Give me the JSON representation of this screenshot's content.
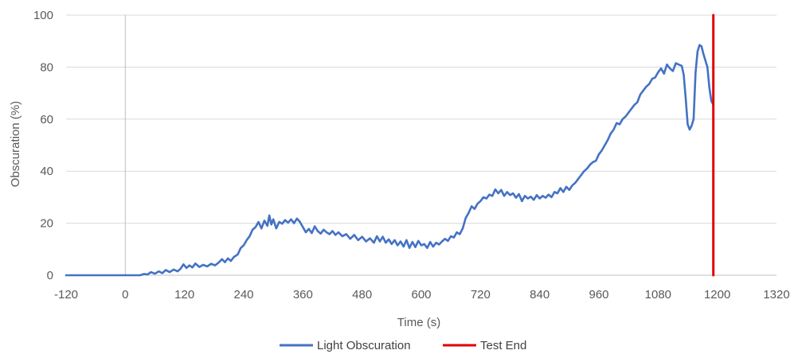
{
  "chart_data": {
    "type": "line",
    "title": "",
    "xlabel": "Time (s)",
    "ylabel": "Obscuration (%)",
    "xlim": [
      -120,
      1320
    ],
    "ylim": [
      0,
      100
    ],
    "xticks": [
      "-120",
      "0",
      "120",
      "240",
      "360",
      "480",
      "600",
      "720",
      "840",
      "960",
      "1080",
      "1200",
      "1320"
    ],
    "yticks": [
      "0",
      "20",
      "40",
      "60",
      "80",
      "100"
    ],
    "grid": "horizontal",
    "legend_position": "bottom",
    "series": [
      {
        "name": "Light Obscuration",
        "color": "#4472C4",
        "points": [
          [
            -120,
            0
          ],
          [
            0,
            0
          ],
          [
            30,
            0
          ],
          [
            38,
            0.5
          ],
          [
            45,
            0.3
          ],
          [
            52,
            1.2
          ],
          [
            60,
            0.6
          ],
          [
            68,
            1.5
          ],
          [
            75,
            0.8
          ],
          [
            82,
            2.0
          ],
          [
            90,
            1.2
          ],
          [
            98,
            2.2
          ],
          [
            106,
            1.5
          ],
          [
            112,
            2.5
          ],
          [
            118,
            4.2
          ],
          [
            124,
            2.8
          ],
          [
            130,
            3.8
          ],
          [
            136,
            3.0
          ],
          [
            142,
            4.5
          ],
          [
            150,
            3.2
          ],
          [
            158,
            4.0
          ],
          [
            166,
            3.4
          ],
          [
            174,
            4.4
          ],
          [
            182,
            3.8
          ],
          [
            190,
            5.0
          ],
          [
            196,
            6.2
          ],
          [
            202,
            5.0
          ],
          [
            208,
            6.5
          ],
          [
            214,
            5.5
          ],
          [
            220,
            7.0
          ],
          [
            228,
            8.0
          ],
          [
            234,
            10.5
          ],
          [
            240,
            11.5
          ],
          [
            246,
            13.5
          ],
          [
            252,
            15.0
          ],
          [
            258,
            17.5
          ],
          [
            264,
            18.5
          ],
          [
            270,
            20.5
          ],
          [
            276,
            18.0
          ],
          [
            282,
            21.0
          ],
          [
            288,
            19.0
          ],
          [
            292,
            23.0
          ],
          [
            296,
            19.5
          ],
          [
            300,
            21.5
          ],
          [
            306,
            18.0
          ],
          [
            312,
            20.5
          ],
          [
            318,
            19.8
          ],
          [
            324,
            21.2
          ],
          [
            330,
            20.2
          ],
          [
            336,
            21.5
          ],
          [
            342,
            20.0
          ],
          [
            348,
            21.8
          ],
          [
            354,
            20.5
          ],
          [
            360,
            18.5
          ],
          [
            366,
            16.5
          ],
          [
            372,
            17.8
          ],
          [
            378,
            16.2
          ],
          [
            384,
            18.8
          ],
          [
            390,
            17.0
          ],
          [
            396,
            16.0
          ],
          [
            402,
            17.5
          ],
          [
            408,
            16.5
          ],
          [
            414,
            15.8
          ],
          [
            420,
            17.0
          ],
          [
            426,
            15.5
          ],
          [
            432,
            16.5
          ],
          [
            440,
            15.0
          ],
          [
            448,
            15.8
          ],
          [
            456,
            14.0
          ],
          [
            464,
            15.5
          ],
          [
            472,
            13.5
          ],
          [
            480,
            14.8
          ],
          [
            488,
            13.0
          ],
          [
            496,
            14.2
          ],
          [
            504,
            12.5
          ],
          [
            510,
            15.0
          ],
          [
            516,
            13.0
          ],
          [
            522,
            14.8
          ],
          [
            528,
            12.5
          ],
          [
            534,
            13.8
          ],
          [
            540,
            12.0
          ],
          [
            546,
            13.5
          ],
          [
            552,
            11.5
          ],
          [
            558,
            13.0
          ],
          [
            564,
            11.0
          ],
          [
            570,
            13.5
          ],
          [
            576,
            10.5
          ],
          [
            582,
            12.8
          ],
          [
            588,
            10.8
          ],
          [
            594,
            13.2
          ],
          [
            600,
            11.5
          ],
          [
            606,
            12.0
          ],
          [
            612,
            10.5
          ],
          [
            618,
            12.8
          ],
          [
            624,
            11.0
          ],
          [
            630,
            12.5
          ],
          [
            636,
            11.8
          ],
          [
            642,
            13.0
          ],
          [
            648,
            14.0
          ],
          [
            654,
            13.2
          ],
          [
            660,
            15.0
          ],
          [
            666,
            14.5
          ],
          [
            672,
            16.5
          ],
          [
            678,
            15.8
          ],
          [
            684,
            18.0
          ],
          [
            690,
            22.0
          ],
          [
            696,
            24.0
          ],
          [
            702,
            26.5
          ],
          [
            708,
            25.5
          ],
          [
            714,
            27.5
          ],
          [
            720,
            28.5
          ],
          [
            726,
            30.0
          ],
          [
            732,
            29.5
          ],
          [
            738,
            31.0
          ],
          [
            744,
            30.5
          ],
          [
            750,
            33.0
          ],
          [
            756,
            31.5
          ],
          [
            762,
            32.8
          ],
          [
            768,
            30.5
          ],
          [
            774,
            32.0
          ],
          [
            780,
            30.8
          ],
          [
            786,
            31.5
          ],
          [
            792,
            29.8
          ],
          [
            798,
            31.2
          ],
          [
            804,
            28.5
          ],
          [
            810,
            30.5
          ],
          [
            816,
            29.5
          ],
          [
            822,
            30.2
          ],
          [
            828,
            29.0
          ],
          [
            834,
            30.8
          ],
          [
            840,
            29.5
          ],
          [
            846,
            30.5
          ],
          [
            852,
            29.8
          ],
          [
            858,
            31.0
          ],
          [
            864,
            30.0
          ],
          [
            870,
            32.0
          ],
          [
            876,
            31.5
          ],
          [
            882,
            33.5
          ],
          [
            888,
            32.0
          ],
          [
            894,
            34.0
          ],
          [
            900,
            32.8
          ],
          [
            906,
            34.5
          ],
          [
            912,
            35.5
          ],
          [
            918,
            37.0
          ],
          [
            924,
            38.5
          ],
          [
            930,
            40.0
          ],
          [
            936,
            41.0
          ],
          [
            942,
            42.5
          ],
          [
            948,
            43.5
          ],
          [
            954,
            44.0
          ],
          [
            960,
            46.5
          ],
          [
            966,
            48.0
          ],
          [
            972,
            50.0
          ],
          [
            978,
            52.0
          ],
          [
            984,
            54.5
          ],
          [
            990,
            56.0
          ],
          [
            996,
            58.5
          ],
          [
            1002,
            58.0
          ],
          [
            1008,
            60.0
          ],
          [
            1014,
            61.0
          ],
          [
            1020,
            62.5
          ],
          [
            1026,
            64.0
          ],
          [
            1032,
            65.5
          ],
          [
            1038,
            66.5
          ],
          [
            1044,
            69.5
          ],
          [
            1050,
            71.0
          ],
          [
            1056,
            72.5
          ],
          [
            1062,
            73.5
          ],
          [
            1068,
            75.5
          ],
          [
            1074,
            76.0
          ],
          [
            1080,
            78.0
          ],
          [
            1086,
            79.5
          ],
          [
            1092,
            77.5
          ],
          [
            1098,
            81.0
          ],
          [
            1104,
            79.5
          ],
          [
            1110,
            78.5
          ],
          [
            1116,
            81.5
          ],
          [
            1122,
            81.0
          ],
          [
            1128,
            80.5
          ],
          [
            1132,
            77.0
          ],
          [
            1136,
            68.0
          ],
          [
            1140,
            58.0
          ],
          [
            1144,
            56.0
          ],
          [
            1148,
            57.5
          ],
          [
            1152,
            60.0
          ],
          [
            1156,
            78.0
          ],
          [
            1160,
            86.0
          ],
          [
            1164,
            88.5
          ],
          [
            1168,
            88.0
          ],
          [
            1172,
            85.0
          ],
          [
            1176,
            82.5
          ],
          [
            1180,
            80.0
          ],
          [
            1184,
            72.0
          ],
          [
            1188,
            67.0
          ],
          [
            1192,
            65.5
          ]
        ]
      },
      {
        "name": "Test End",
        "color": "#E00000",
        "points": [
          [
            1192,
            0
          ],
          [
            1192,
            100
          ]
        ]
      }
    ]
  }
}
